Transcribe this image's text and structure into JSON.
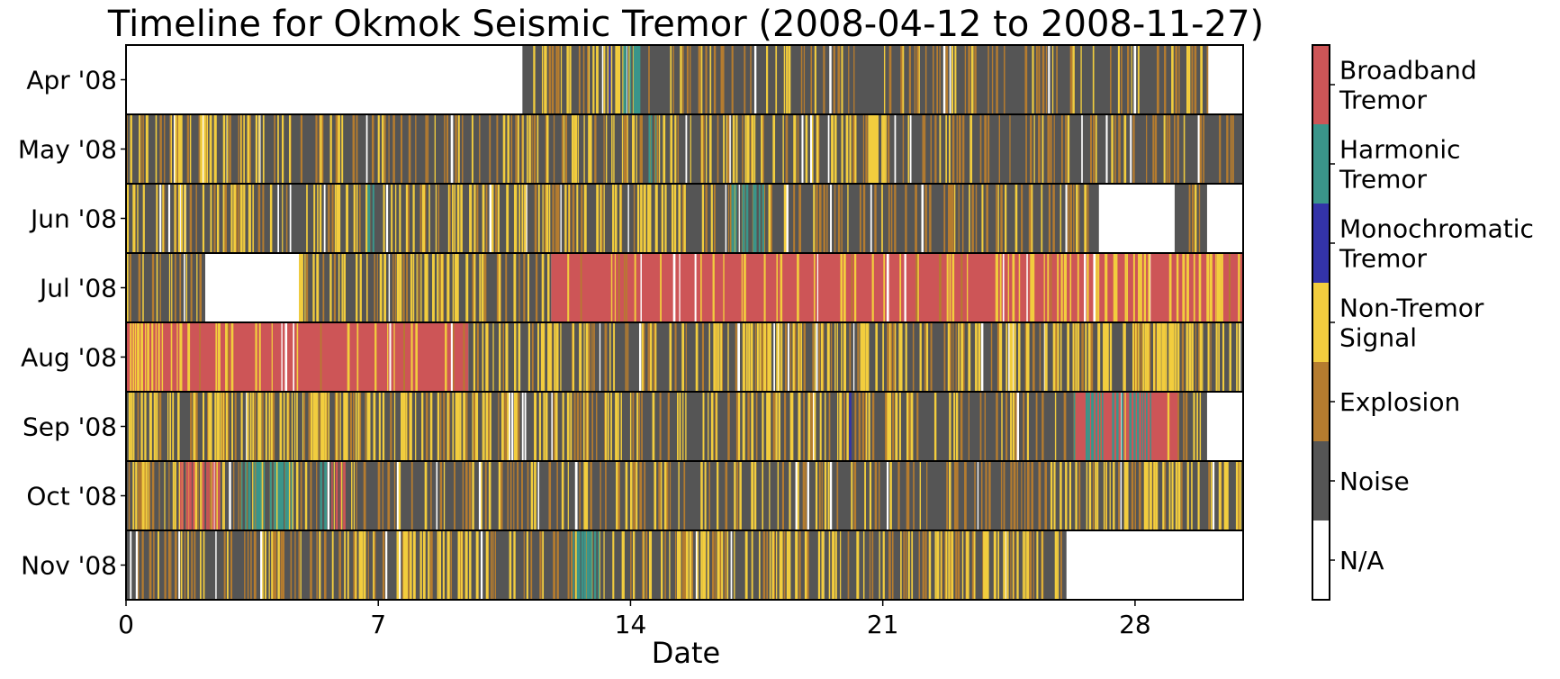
{
  "chart_data": {
    "type": "heatmap",
    "title": "Timeline for Okmok Seismic Tremor (2008-04-12 to 2008-11-27)",
    "xlabel": "Date",
    "ylabel": "",
    "xlim": [
      0,
      31
    ],
    "xticks": [
      "0",
      "7",
      "14",
      "21",
      "28"
    ],
    "xtick_values": [
      0,
      7,
      14,
      21,
      28
    ],
    "rows": [
      "Apr '08",
      "May '08",
      "Jun '08",
      "Jul '08",
      "Aug '08",
      "Sep '08",
      "Oct '08",
      "Nov '08"
    ],
    "classes": [
      {
        "label_lines": [
          "Broadband",
          "Tremor"
        ],
        "color": "#cd5557"
      },
      {
        "label_lines": [
          "Harmonic",
          "Tremor"
        ],
        "color": "#3a958a"
      },
      {
        "label_lines": [
          "Monochromatic",
          "Tremor"
        ],
        "color": "#3333a8"
      },
      {
        "label_lines": [
          "Non-Tremor",
          "Signal"
        ],
        "color": "#f2cd3e"
      },
      {
        "label_lines": [
          "Explosion"
        ],
        "color": "#b57c2f"
      },
      {
        "label_lines": [
          "Noise"
        ],
        "color": "#555555"
      },
      {
        "label_lines": [
          "N/A"
        ],
        "color": "#ffffff"
      }
    ],
    "segments": [
      [
        [
          0,
          11,
          "N/A"
        ],
        [
          11,
          30,
          "Noise"
        ],
        [
          30,
          31,
          "N/A"
        ]
      ],
      [
        [
          0,
          31,
          "Noise"
        ]
      ],
      [
        [
          0,
          27,
          "Noise"
        ],
        [
          27,
          29.1,
          "N/A"
        ],
        [
          29.1,
          30,
          "Noise"
        ],
        [
          30,
          31,
          "N/A"
        ]
      ],
      [
        [
          0,
          2.2,
          "Noise"
        ],
        [
          2.2,
          4.8,
          "N/A"
        ],
        [
          4.8,
          11.8,
          "Noise"
        ],
        [
          11.8,
          31,
          "Broadband"
        ]
      ],
      [
        [
          0,
          2.8,
          "Broadband"
        ],
        [
          2.8,
          9.5,
          "Broadband"
        ],
        [
          9.5,
          16,
          "Noise"
        ],
        [
          16,
          31,
          "Noise"
        ]
      ],
      [
        [
          0,
          26.3,
          "Noise"
        ],
        [
          26.3,
          29.2,
          "Broadband"
        ],
        [
          29.2,
          30,
          "Noise"
        ],
        [
          30,
          31,
          "N/A"
        ]
      ],
      [
        [
          0,
          31,
          "Noise"
        ]
      ],
      [
        [
          0,
          26.1,
          "Noise"
        ],
        [
          26.1,
          31,
          "N/A"
        ]
      ]
    ],
    "overlays": [
      [
        0,
        11,
        14,
        "Non-Tremor"
      ],
      [
        0,
        13.8,
        14.2,
        "Harmonic"
      ],
      [
        0,
        13.3,
        13.5,
        "Monochromatic"
      ],
      [
        1,
        0,
        6,
        "Non-Tremor"
      ],
      [
        1,
        11,
        21,
        "Non-Tremor"
      ],
      [
        1,
        22.3,
        22.6,
        "Monochromatic"
      ],
      [
        1,
        14.5,
        14.7,
        "Harmonic"
      ],
      [
        2,
        0,
        3.6,
        "Non-Tremor"
      ],
      [
        2,
        5.3,
        15.5,
        "Non-Tremor"
      ],
      [
        2,
        16.8,
        17.7,
        "Harmonic"
      ],
      [
        2,
        6.7,
        6.9,
        "Harmonic"
      ],
      [
        3,
        4.8,
        11.8,
        "Non-Tremor"
      ],
      [
        3,
        24,
        31,
        "Non-Tremor"
      ],
      [
        4,
        0,
        2.8,
        "Non-Tremor"
      ],
      [
        4,
        9.5,
        31,
        "Non-Tremor"
      ],
      [
        5,
        0,
        14,
        "Non-Tremor"
      ],
      [
        5,
        16,
        22,
        "Non-Tremor"
      ],
      [
        5,
        26.3,
        28.5,
        "Harmonic"
      ],
      [
        5,
        20,
        20.2,
        "Monochromatic"
      ],
      [
        6,
        0,
        6,
        "Non-Tremor"
      ],
      [
        6,
        3.2,
        4.6,
        "Harmonic"
      ],
      [
        6,
        5.3,
        5.6,
        "Harmonic"
      ],
      [
        6,
        1.5,
        2.6,
        "Broadband"
      ],
      [
        6,
        5.7,
        6.1,
        "Broadband"
      ],
      [
        6,
        26,
        31,
        "Non-Tremor"
      ],
      [
        7,
        6,
        10,
        "Non-Tremor"
      ],
      [
        7,
        12.4,
        13.2,
        "Harmonic"
      ],
      [
        7,
        13.5,
        20.5,
        "Non-Tremor"
      ],
      [
        7,
        22.5,
        26.1,
        "Non-Tremor"
      ]
    ]
  }
}
